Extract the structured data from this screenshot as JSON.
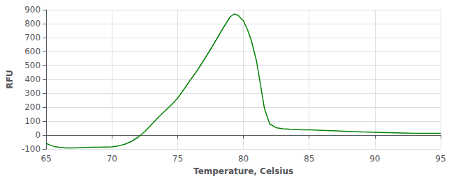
{
  "chart_data": {
    "type": "line",
    "xlabel": "Temperature, Celsius",
    "ylabel": "RFU",
    "color": "#008000",
    "grid": true,
    "xlim": [
      65,
      95
    ],
    "ylim": [
      -100,
      900
    ],
    "xticks": [
      65,
      70,
      75,
      80,
      85,
      90,
      95
    ],
    "yticks": [
      -100,
      0,
      100,
      200,
      300,
      400,
      500,
      600,
      700,
      800,
      900
    ],
    "x": [
      65.0,
      65.3,
      65.6,
      66.0,
      66.5,
      67.0,
      67.5,
      68.0,
      68.5,
      69.0,
      69.5,
      70.0,
      70.5,
      71.0,
      71.5,
      72.0,
      72.5,
      73.0,
      73.5,
      74.0,
      74.5,
      75.0,
      75.3,
      75.6,
      76.0,
      76.5,
      77.0,
      77.5,
      78.0,
      78.5,
      79.0,
      79.3,
      79.6,
      80.0,
      80.3,
      80.6,
      81.0,
      81.3,
      81.6,
      82.0,
      82.5,
      83.0,
      83.5,
      84.0,
      84.5,
      85.0,
      86.0,
      87.0,
      88.0,
      89.0,
      90.0,
      91.0,
      92.0,
      93.0,
      94.0,
      95.0
    ],
    "values": [
      -60,
      -72,
      -82,
      -88,
      -92,
      -93,
      -91,
      -89,
      -88,
      -87,
      -86,
      -85,
      -78,
      -65,
      -45,
      -15,
      25,
      75,
      125,
      170,
      215,
      265,
      305,
      345,
      400,
      465,
      540,
      615,
      695,
      775,
      850,
      870,
      860,
      820,
      760,
      680,
      530,
      360,
      190,
      80,
      52,
      45,
      42,
      40,
      38,
      37,
      34,
      30,
      26,
      22,
      20,
      17,
      15,
      13,
      12,
      12
    ]
  }
}
